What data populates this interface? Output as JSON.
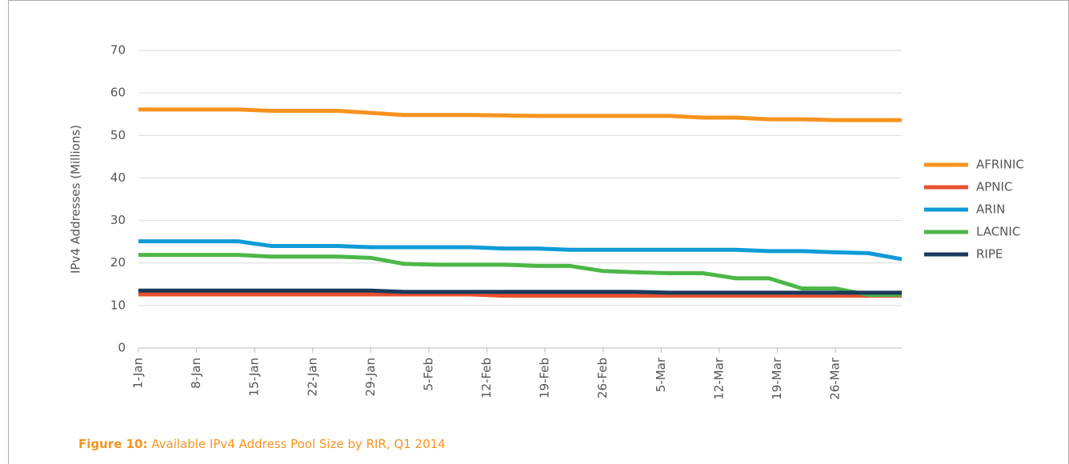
{
  "chart_data": {
    "type": "line",
    "figure_label": "Figure 10:",
    "title": "Available IPv4 Address Pool Size by RIR, Q1 2014",
    "y_label": "IPv4 Addresses (Millions)",
    "x": [
      0,
      4,
      8,
      12,
      16,
      20,
      24,
      28,
      32,
      36,
      40,
      44,
      48,
      52,
      56,
      60,
      64,
      68,
      72,
      76,
      80,
      84,
      88,
      92
    ],
    "xlim": [
      0,
      92
    ],
    "xticks": [
      {
        "value": 0,
        "label": "1-Jan"
      },
      {
        "value": 7,
        "label": "8-Jan"
      },
      {
        "value": 14,
        "label": "15-Jan"
      },
      {
        "value": 21,
        "label": "22-Jan"
      },
      {
        "value": 28,
        "label": "29-Jan"
      },
      {
        "value": 35,
        "label": "5-Feb"
      },
      {
        "value": 42,
        "label": "12-Feb"
      },
      {
        "value": 49,
        "label": "19-Feb"
      },
      {
        "value": 56,
        "label": "26-Feb"
      },
      {
        "value": 63,
        "label": "5-Mar"
      },
      {
        "value": 70,
        "label": "12-Mar"
      },
      {
        "value": 77,
        "label": "19-Mar"
      },
      {
        "value": 84,
        "label": "26-Mar"
      }
    ],
    "ylim": [
      0,
      70
    ],
    "yticks": [
      0,
      10,
      20,
      30,
      40,
      50,
      60,
      70
    ],
    "grid": true,
    "legend": "right",
    "series": [
      {
        "name": "AFRINIC",
        "color": "#f7931e",
        "values": [
          56.1,
          56.1,
          56.1,
          56.1,
          55.8,
          55.8,
          55.8,
          55.3,
          54.8,
          54.8,
          54.8,
          54.7,
          54.6,
          54.6,
          54.6,
          54.6,
          54.6,
          54.2,
          54.2,
          53.8,
          53.8,
          53.6,
          53.6,
          53.6
        ]
      },
      {
        "name": "APNIC",
        "color": "#e8502e",
        "values": [
          12.6,
          12.6,
          12.6,
          12.6,
          12.6,
          12.6,
          12.6,
          12.6,
          12.6,
          12.6,
          12.6,
          12.3,
          12.3,
          12.3,
          12.3,
          12.3,
          12.3,
          12.3,
          12.3,
          12.3,
          12.3,
          12.3,
          12.3,
          12.3
        ]
      },
      {
        "name": "ARIN",
        "color": "#0f9bd7",
        "values": [
          25.1,
          25.1,
          25.1,
          25.1,
          24.0,
          24.0,
          24.0,
          23.7,
          23.7,
          23.7,
          23.7,
          23.4,
          23.4,
          23.1,
          23.1,
          23.1,
          23.1,
          23.1,
          23.1,
          22.8,
          22.8,
          22.5,
          22.3,
          20.9
        ]
      },
      {
        "name": "LACNIC",
        "color": "#4cb747",
        "values": [
          21.9,
          21.9,
          21.9,
          21.9,
          21.5,
          21.5,
          21.5,
          21.2,
          19.8,
          19.6,
          19.6,
          19.6,
          19.3,
          19.3,
          18.1,
          17.8,
          17.6,
          17.6,
          16.4,
          16.4,
          14.0,
          14.0,
          12.5,
          12.5
        ]
      },
      {
        "name": "RIPE",
        "color": "#1a3a5c",
        "values": [
          13.5,
          13.5,
          13.5,
          13.5,
          13.5,
          13.5,
          13.5,
          13.5,
          13.2,
          13.2,
          13.2,
          13.2,
          13.2,
          13.2,
          13.2,
          13.2,
          13.0,
          13.0,
          13.0,
          13.0,
          13.0,
          13.0,
          13.0,
          13.0
        ]
      }
    ]
  }
}
